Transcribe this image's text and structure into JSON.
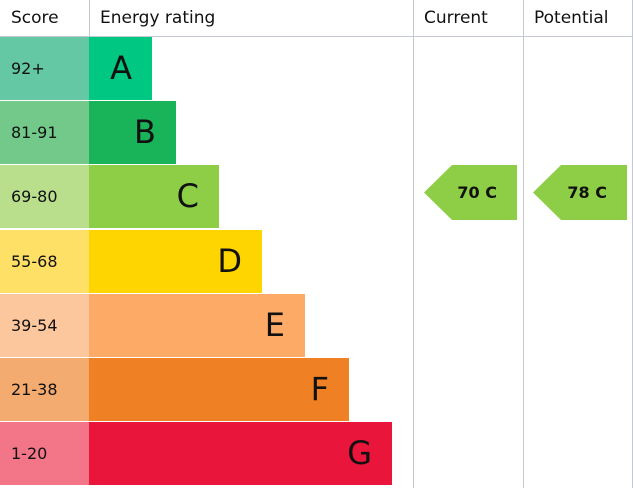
{
  "chart_data": {
    "type": "bar",
    "columns": [
      "Score",
      "Energy rating",
      "Current",
      "Potential"
    ],
    "bands": [
      {
        "score": "92+",
        "letter": "A",
        "color": "#00c781",
        "score_color": "#64c8a4"
      },
      {
        "score": "81-91",
        "letter": "B",
        "color": "#19b459",
        "score_color": "#72c98a"
      },
      {
        "score": "69-80",
        "letter": "C",
        "color": "#8dce46",
        "score_color": "#b9df8d"
      },
      {
        "score": "55-68",
        "letter": "D",
        "color": "#ffd500",
        "score_color": "#ffe066"
      },
      {
        "score": "39-54",
        "letter": "E",
        "color": "#fcaa65",
        "score_color": "#fdc79d"
      },
      {
        "score": "21-38",
        "letter": "F",
        "color": "#ef8023",
        "score_color": "#f4ab70"
      },
      {
        "score": "1-20",
        "letter": "G",
        "color": "#e9153b",
        "score_color": "#f27588"
      }
    ],
    "current": {
      "label": "70 C",
      "value": 70,
      "band": "C",
      "color": "#8dce46"
    },
    "potential": {
      "label": "78 C",
      "value": 78,
      "band": "C",
      "color": "#8dce46"
    }
  }
}
